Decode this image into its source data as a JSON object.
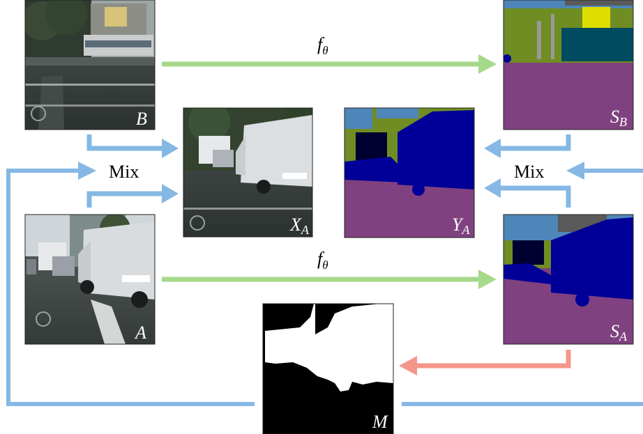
{
  "labels": {
    "B": "B",
    "A": "A",
    "X_A_main": "X",
    "X_A_sub": "A",
    "Y_A_main": "Y",
    "Y_A_sub": "A",
    "S_B_main": "S",
    "S_B_sub": "B",
    "S_A_main": "S",
    "S_A_sub": "A",
    "M": "M",
    "f_theta_top_main": "f",
    "f_theta_top_sub": "θ",
    "f_theta_bottom_main": "f",
    "f_theta_bottom_sub": "θ",
    "mix_left": "Mix",
    "mix_right": "Mix"
  },
  "colors": {
    "blue_arrow": "#85b8e4",
    "green_arrow": "#a6d98a",
    "red_arrow": "#f4978a",
    "road": "#7f417f",
    "vehicle": "#000098",
    "vegetation": "#6f8d22",
    "sky": "#4f86b9",
    "building": "#5a5a5a",
    "sign": "#dede00",
    "pole": "#999999",
    "terrain": "#91a64b",
    "truck": "#004b60",
    "mask_white": "#ffffff",
    "mask_black": "#000000"
  }
}
